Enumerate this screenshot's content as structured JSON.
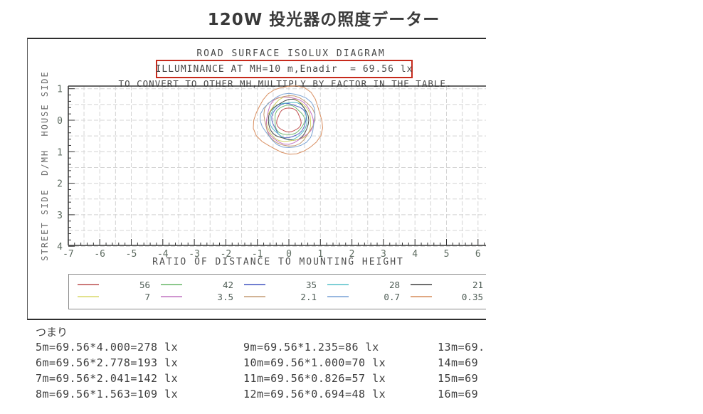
{
  "page": {
    "title": "120W 投光器の照度データー"
  },
  "chart": {
    "header1": "ROAD SURFACE ISOLUX DIAGRAM",
    "header2": "ILLUMINANCE AT MH=10 m,Enadir  = 69.56 lx",
    "header3": "TO CONVERT TO OTHER MH,MULTIPLY BY FACTOR IN THE TABLE.",
    "xlabel": "RATIO OF DISTANCE TO MOUNTING HEIGHT",
    "ylabel": "STREET SIDE  D/MH  HOUSE SIDE",
    "highlight_box_color": "#c62a1c"
  },
  "chart_data": {
    "type": "isolux-contour",
    "title": "ROAD SURFACE ISOLUX DIAGRAM",
    "xlabel": "RATIO OF DISTANCE TO MOUNTING HEIGHT",
    "ylabel": "STREET SIDE  D/MH  HOUSE SIDE",
    "x_range": [
      -7,
      6.25
    ],
    "y_range": [
      -4,
      1.09
    ],
    "grid_step": 0.5,
    "minor_tick_step": 0.2,
    "grid_on": true,
    "x_ticks": [
      {
        "v": -7,
        "label": "-7"
      },
      {
        "v": -6,
        "label": "-6"
      },
      {
        "v": -5,
        "label": "-5"
      },
      {
        "v": -4,
        "label": "-4"
      },
      {
        "v": -3,
        "label": "-3"
      },
      {
        "v": -2,
        "label": "-2"
      },
      {
        "v": -1,
        "label": "-1"
      },
      {
        "v": 0,
        "label": "0"
      },
      {
        "v": 1,
        "label": "1"
      },
      {
        "v": 2,
        "label": "2"
      },
      {
        "v": 3,
        "label": "3"
      },
      {
        "v": 4,
        "label": "4"
      },
      {
        "v": 5,
        "label": "5"
      },
      {
        "v": 6,
        "label": "6"
      }
    ],
    "y_ticks": [
      {
        "v": 1,
        "label": "1"
      },
      {
        "v": 0,
        "label": "0"
      },
      {
        "v": -1,
        "label": "1"
      },
      {
        "v": -2,
        "label": "2"
      },
      {
        "v": -3,
        "label": "3"
      },
      {
        "v": -4,
        "label": "4"
      }
    ],
    "center": [
      0,
      0
    ],
    "contours": [
      {
        "level": "56",
        "radius": 0.38,
        "color": "#c05050"
      },
      {
        "level": "42",
        "radius": 0.47,
        "color": "#74bc74"
      },
      {
        "level": "35",
        "radius": 0.54,
        "color": "#5464c4"
      },
      {
        "level": "28",
        "radius": 0.59,
        "color": "#54bcc8"
      },
      {
        "level": "21",
        "radius": 0.64,
        "color": "#4a4a4a"
      },
      {
        "level": "7",
        "radius": 0.7,
        "color": "#d2d266"
      },
      {
        "level": "3.5",
        "radius": 0.745,
        "color": "#c472c4"
      },
      {
        "level": "2.1",
        "radius": 0.8,
        "color": "#c49a74"
      },
      {
        "level": "0.7",
        "radius": 0.86,
        "color": "#7ca4d4"
      },
      {
        "level": "0.35",
        "radius": 1.08,
        "color": "#d88e60"
      }
    ],
    "legend_position": "bottom",
    "legend": [
      {
        "label": "56",
        "color": "#cc7a7a"
      },
      {
        "label": "42",
        "color": "#8cc88c"
      },
      {
        "label": "35",
        "color": "#707ed0"
      },
      {
        "label": "28",
        "color": "#7ecfd6"
      },
      {
        "label": "21",
        "color": "#6e6e6e"
      },
      {
        "label": "7",
        "color": "#e2e28e"
      },
      {
        "label": "3.5",
        "color": "#d096d0"
      },
      {
        "label": "2.1",
        "color": "#d2b496"
      },
      {
        "label": "0.7",
        "color": "#98b8e0"
      },
      {
        "label": "0.35",
        "color": "#e0a882"
      }
    ]
  },
  "notes": {
    "intro": "つまり",
    "columns": [
      {
        "lines": [
          "5m=69.56*4.000=278 lx",
          "6m=69.56*2.778=193 lx",
          "7m=69.56*2.041=142 lx",
          "8m=69.56*1.563=109 lx"
        ]
      },
      {
        "lines": [
          "9m=69.56*1.235=86 lx",
          "10m=69.56*1.000=70 lx",
          "11m=69.56*0.826=57 lx",
          "12m=69.56*0.694=48 lx"
        ]
      },
      {
        "lines": [
          "13m=69.",
          "14m=69",
          "15m=69",
          "16m=69"
        ]
      }
    ]
  }
}
